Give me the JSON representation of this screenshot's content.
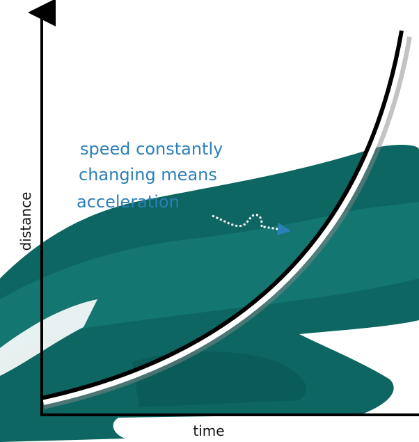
{
  "axes": {
    "y_label": "distance",
    "x_label": "time"
  },
  "annotation": {
    "lines": [
      "speed constantly",
      "changing means",
      "acceleration"
    ]
  }
}
